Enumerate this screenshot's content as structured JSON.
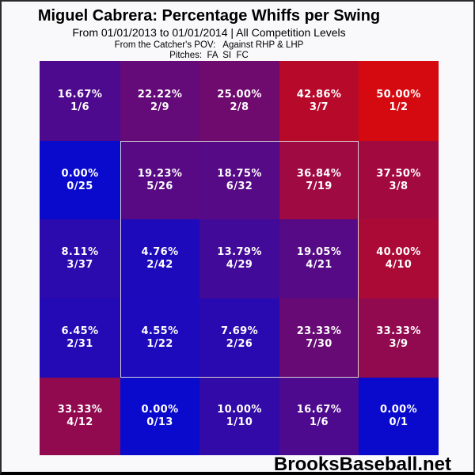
{
  "header": {
    "title": "Miguel Cabrera: Percentage Whiffs per Swing",
    "subtitle": "From 01/01/2013 to 01/01/2014 | All Competition Levels",
    "pov_line": "From the Catcher's POV:   Against RHP & LHP",
    "pitches_line": "Pitches:  FA  SI  FC"
  },
  "footer": {
    "brand": "BrooksBaseball.net"
  },
  "chart_data": {
    "type": "heatmap",
    "title": "Miguel Cabrera: Percentage Whiffs per Swing",
    "date_range": "From 01/01/2013 to 01/01/2014",
    "competition_level": "All Competition Levels",
    "perspective": "From the Catcher's POV",
    "split": "Against RHP & LHP",
    "pitches": [
      "FA",
      "SI",
      "FC"
    ],
    "metric": "Percentage Whiffs per Swing",
    "grid": {
      "rows": 5,
      "cols": 5
    },
    "colorscale": {
      "min_value": 0,
      "max_value": 50,
      "min_color": "#0A0ACD",
      "max_color": "#D40A10"
    },
    "strike_zone": {
      "row_start": 1,
      "col_start": 1,
      "row_end": 3,
      "col_end": 3,
      "outline_color": "#d9d3d3"
    },
    "cells": [
      [
        {
          "pct": "16.67%",
          "frac": "1/6",
          "value": 16.67,
          "whiffs": 1,
          "swings": 6,
          "color": "#4D0A8E"
        },
        {
          "pct": "22.22%",
          "frac": "2/9",
          "value": 22.22,
          "whiffs": 2,
          "swings": 9,
          "color": "#640A79"
        },
        {
          "pct": "25.00%",
          "frac": "2/8",
          "value": 25.0,
          "whiffs": 2,
          "swings": 8,
          "color": "#6F0A6F"
        },
        {
          "pct": "42.86%",
          "frac": "3/7",
          "value": 42.86,
          "whiffs": 3,
          "swings": 7,
          "color": "#B70A2B"
        },
        {
          "pct": "50.00%",
          "frac": "1/2",
          "value": 50.0,
          "whiffs": 1,
          "swings": 2,
          "color": "#D40A10"
        }
      ],
      [
        {
          "pct": "0.00%",
          "frac": "0/25",
          "value": 0.0,
          "whiffs": 0,
          "swings": 25,
          "color": "#0A0ACD"
        },
        {
          "pct": "19.23%",
          "frac": "5/26",
          "value": 19.23,
          "whiffs": 5,
          "swings": 26,
          "color": "#580A84"
        },
        {
          "pct": "18.75%",
          "frac": "6/32",
          "value": 18.75,
          "whiffs": 6,
          "swings": 32,
          "color": "#560A86"
        },
        {
          "pct": "36.84%",
          "frac": "7/19",
          "value": 36.84,
          "whiffs": 7,
          "swings": 19,
          "color": "#9F0A42"
        },
        {
          "pct": "37.50%",
          "frac": "3/8",
          "value": 37.5,
          "whiffs": 3,
          "swings": 8,
          "color": "#A20A3F"
        }
      ],
      [
        {
          "pct": "8.11%",
          "frac": "3/37",
          "value": 8.11,
          "whiffs": 3,
          "swings": 37,
          "color": "#2B0AAE"
        },
        {
          "pct": "4.76%",
          "frac": "2/42",
          "value": 4.76,
          "whiffs": 2,
          "swings": 42,
          "color": "#1D0ABB"
        },
        {
          "pct": "13.79%",
          "frac": "4/29",
          "value": 13.79,
          "whiffs": 4,
          "swings": 29,
          "color": "#420A99"
        },
        {
          "pct": "19.05%",
          "frac": "4/21",
          "value": 19.05,
          "whiffs": 4,
          "swings": 21,
          "color": "#570A85"
        },
        {
          "pct": "40.00%",
          "frac": "4/10",
          "value": 40.0,
          "whiffs": 4,
          "swings": 10,
          "color": "#AC0A36"
        }
      ],
      [
        {
          "pct": "6.45%",
          "frac": "2/31",
          "value": 6.45,
          "whiffs": 2,
          "swings": 31,
          "color": "#240AB5"
        },
        {
          "pct": "4.55%",
          "frac": "1/22",
          "value": 4.55,
          "whiffs": 1,
          "swings": 22,
          "color": "#1C0ABC"
        },
        {
          "pct": "7.69%",
          "frac": "2/26",
          "value": 7.69,
          "whiffs": 2,
          "swings": 26,
          "color": "#290AB0"
        },
        {
          "pct": "23.33%",
          "frac": "7/30",
          "value": 23.33,
          "whiffs": 7,
          "swings": 30,
          "color": "#680A75"
        },
        {
          "pct": "33.33%",
          "frac": "3/9",
          "value": 33.33,
          "whiffs": 3,
          "swings": 9,
          "color": "#910A4F"
        }
      ],
      [
        {
          "pct": "33.33%",
          "frac": "4/12",
          "value": 33.33,
          "whiffs": 4,
          "swings": 12,
          "color": "#910A4F"
        },
        {
          "pct": "0.00%",
          "frac": "0/13",
          "value": 0.0,
          "whiffs": 0,
          "swings": 13,
          "color": "#0A0ACD"
        },
        {
          "pct": "10.00%",
          "frac": "1/10",
          "value": 10.0,
          "whiffs": 1,
          "swings": 10,
          "color": "#320AA7"
        },
        {
          "pct": "16.67%",
          "frac": "1/6",
          "value": 16.67,
          "whiffs": 1,
          "swings": 6,
          "color": "#4D0A8E"
        },
        {
          "pct": "0.00%",
          "frac": "0/1",
          "value": 0.0,
          "whiffs": 0,
          "swings": 1,
          "color": "#0A0ACD"
        }
      ]
    ]
  }
}
